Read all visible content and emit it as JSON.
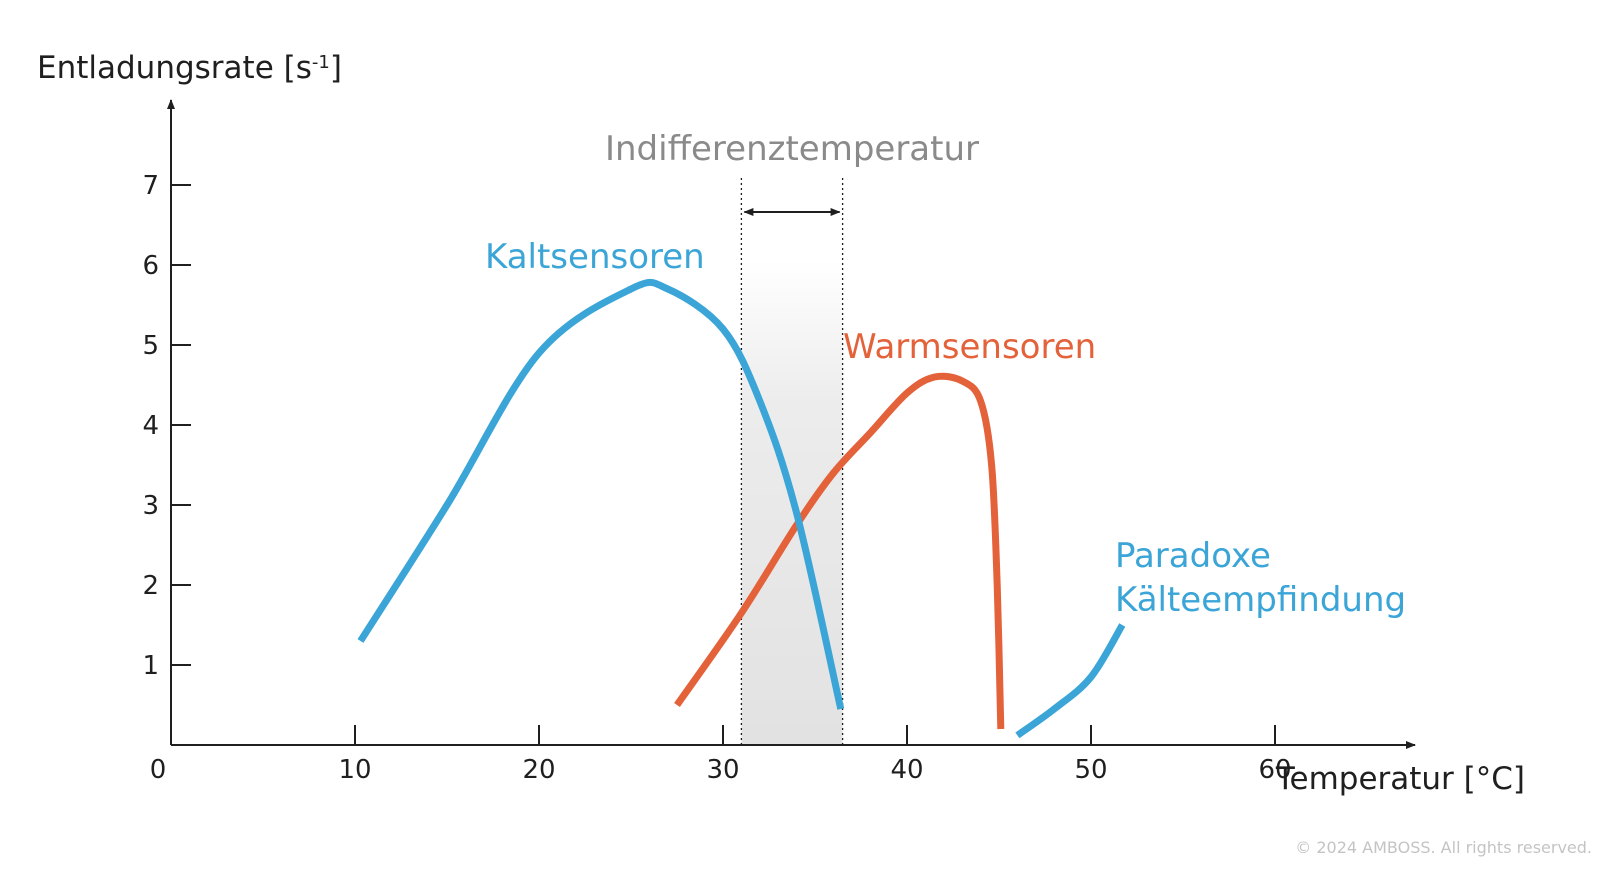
{
  "chart_data": {
    "type": "line",
    "x_axis": {
      "label": "Temperatur [°C]",
      "range": [
        0,
        68
      ],
      "ticks": [
        0,
        10,
        20,
        30,
        40,
        50,
        60
      ]
    },
    "y_axis": {
      "label_main": "Entladungsrate [s",
      "label_sup": "-1",
      "label_end": "]",
      "range": [
        0,
        7.8
      ],
      "ticks": [
        1,
        2,
        3,
        4,
        5,
        6,
        7
      ]
    },
    "grid": false,
    "band": {
      "label": "Indifferenztemperatur",
      "x_start": 31,
      "x_end": 36.5
    },
    "series": [
      {
        "name": "Kaltsensoren",
        "color": "#3aa5d6",
        "points": [
          [
            10.3,
            1.3
          ],
          [
            15,
            3.0
          ],
          [
            20,
            4.9
          ],
          [
            25,
            5.7
          ],
          [
            27,
            5.7
          ],
          [
            30,
            5.2
          ],
          [
            32,
            4.3
          ],
          [
            34,
            2.9
          ],
          [
            36.4,
            0.45
          ]
        ]
      },
      {
        "name": "Warmsensoren",
        "color": "#e4623a",
        "points": [
          [
            27.5,
            0.5
          ],
          [
            31,
            1.65
          ],
          [
            34,
            2.75
          ],
          [
            36,
            3.4
          ],
          [
            38,
            3.9
          ],
          [
            40,
            4.4
          ],
          [
            41.5,
            4.6
          ],
          [
            43,
            4.55
          ],
          [
            44,
            4.3
          ],
          [
            44.6,
            3.5
          ],
          [
            44.9,
            2.0
          ],
          [
            45.1,
            0.2
          ]
        ]
      },
      {
        "name_line1": "Paradoxe",
        "name_line2": "Kälteempfindung",
        "color": "#3aa5d6",
        "points": [
          [
            46,
            0.12
          ],
          [
            48,
            0.45
          ],
          [
            50,
            0.85
          ],
          [
            51.7,
            1.5
          ]
        ]
      }
    ],
    "copyright": "© 2024 AMBOSS. All rights reserved."
  }
}
